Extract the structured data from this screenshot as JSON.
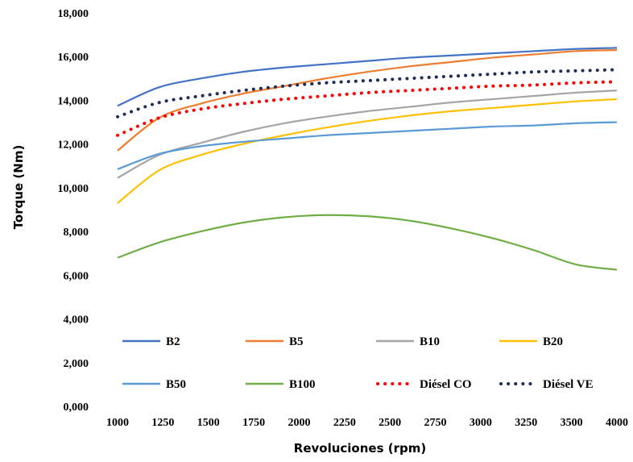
{
  "chart_data": {
    "type": "line",
    "xlabel": "Revoluciones (rpm)",
    "ylabel": "Torque (Nm)",
    "xlim": [
      1000,
      4000
    ],
    "ylim": [
      0,
      18000
    ],
    "x_ticks": [
      "1000",
      "1250",
      "1500",
      "1750",
      "2000",
      "2250",
      "2500",
      "2750",
      "3000",
      "3250",
      "3500",
      "4000"
    ],
    "y_ticks": [
      "0,000",
      "2,000",
      "4,000",
      "6,000",
      "8,000",
      "10,000",
      "12,000",
      "14,000",
      "16,000",
      "18,000"
    ],
    "grid": false,
    "legend_position": "inside-bottom",
    "x": [
      1000,
      1250,
      1500,
      1750,
      2000,
      2250,
      2500,
      2750,
      3000,
      3250,
      3500,
      3750,
      4000
    ],
    "series": [
      {
        "name": "B2",
        "color": "#4472C4",
        "style": "solid",
        "values": [
          13750,
          14600,
          15000,
          15300,
          15500,
          15650,
          15800,
          15950,
          16050,
          16150,
          16250,
          16350,
          16400
        ]
      },
      {
        "name": "B5",
        "color": "#ED7D31",
        "style": "solid",
        "values": [
          11700,
          13200,
          13850,
          14300,
          14650,
          15000,
          15300,
          15550,
          15750,
          15950,
          16100,
          16250,
          16300
        ]
      },
      {
        "name": "B10",
        "color": "#A5A5A5",
        "style": "solid",
        "values": [
          10450,
          11500,
          12050,
          12550,
          12950,
          13250,
          13500,
          13700,
          13900,
          14050,
          14200,
          14350,
          14450
        ]
      },
      {
        "name": "B20",
        "color": "#FFC000",
        "style": "solid",
        "values": [
          9300,
          10800,
          11500,
          12000,
          12400,
          12750,
          13050,
          13300,
          13500,
          13650,
          13800,
          13950,
          14050
        ]
      },
      {
        "name": "B50",
        "color": "#5B9BD5",
        "style": "solid",
        "values": [
          10850,
          11550,
          11900,
          12100,
          12250,
          12400,
          12500,
          12600,
          12700,
          12800,
          12850,
          12950,
          13000
        ]
      },
      {
        "name": "B100",
        "color": "#70AD47",
        "style": "solid",
        "values": [
          6800,
          7500,
          8000,
          8400,
          8650,
          8750,
          8700,
          8500,
          8150,
          7700,
          7150,
          6500,
          6250
        ]
      },
      {
        "name": "Diésel CO",
        "color": "#FF0000",
        "style": "dotted",
        "values": [
          12400,
          13200,
          13600,
          13850,
          14050,
          14200,
          14350,
          14450,
          14550,
          14650,
          14700,
          14800,
          14850
        ]
      },
      {
        "name": "Diésel VE",
        "color": "#1F2D5A",
        "style": "dotted",
        "values": [
          13250,
          13900,
          14200,
          14450,
          14650,
          14800,
          14900,
          15000,
          15100,
          15200,
          15300,
          15350,
          15400
        ]
      }
    ]
  }
}
